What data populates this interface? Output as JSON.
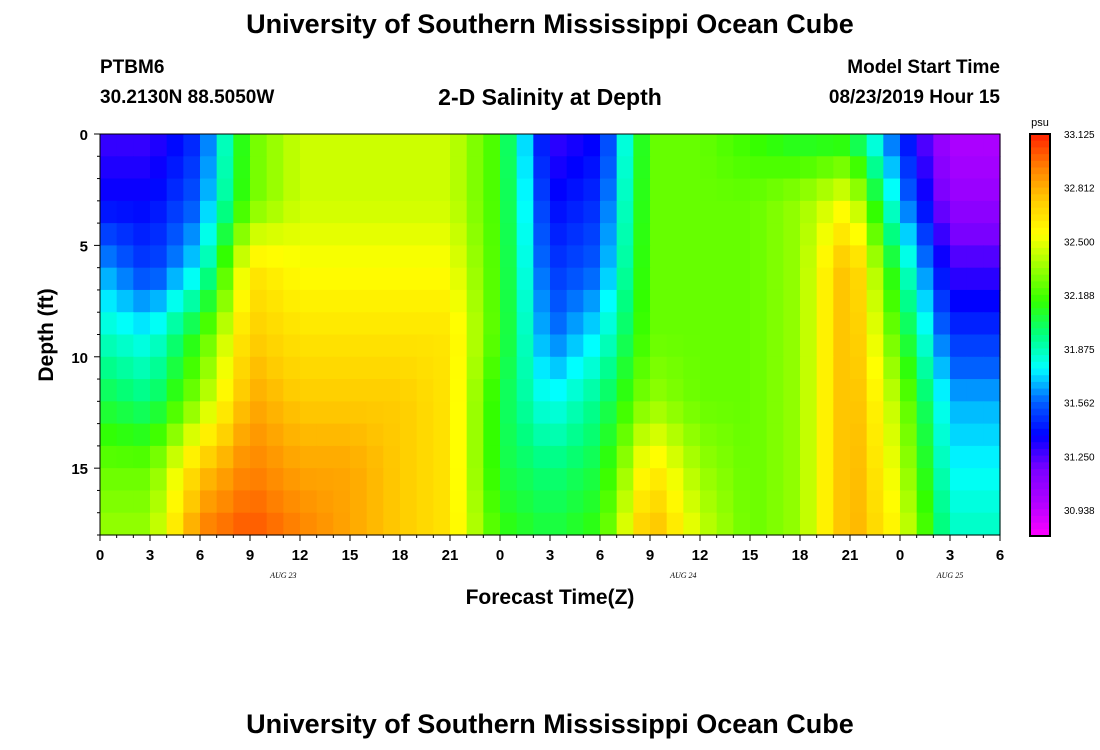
{
  "page": {
    "title_top": "University of Southern Mississippi Ocean Cube",
    "title_bottom": "University of Southern Mississippi Ocean Cube",
    "station": "PTBM6",
    "location": "30.2130N 88.5050W",
    "subtitle": "2-D Salinity at Depth",
    "model_label": "Model Start Time",
    "model_time": "08/23/2019 Hour 15"
  },
  "chart_data": {
    "type": "heatmap",
    "title": "2-D Salinity at Depth",
    "xlabel": "Forecast Time(Z)",
    "ylabel": "Depth (ft)",
    "x_range_hours": [
      0,
      54
    ],
    "y_range_ft": [
      0,
      18
    ],
    "x_ticks": [
      {
        "hour": 0,
        "label": "0"
      },
      {
        "hour": 3,
        "label": "3"
      },
      {
        "hour": 6,
        "label": "6"
      },
      {
        "hour": 9,
        "label": "9"
      },
      {
        "hour": 12,
        "label": "12"
      },
      {
        "hour": 15,
        "label": "15"
      },
      {
        "hour": 18,
        "label": "18"
      },
      {
        "hour": 21,
        "label": "21"
      },
      {
        "hour": 24,
        "label": "0"
      },
      {
        "hour": 27,
        "label": "3"
      },
      {
        "hour": 30,
        "label": "6"
      },
      {
        "hour": 33,
        "label": "9"
      },
      {
        "hour": 36,
        "label": "12"
      },
      {
        "hour": 39,
        "label": "15"
      },
      {
        "hour": 42,
        "label": "18"
      },
      {
        "hour": 45,
        "label": "21"
      },
      {
        "hour": 48,
        "label": "0"
      },
      {
        "hour": 51,
        "label": "3"
      },
      {
        "hour": 54,
        "label": "6"
      }
    ],
    "date_labels": [
      {
        "hour": 11,
        "label": "AUG 23"
      },
      {
        "hour": 35,
        "label": "AUG 24"
      },
      {
        "hour": 51,
        "label": "AUG 25"
      }
    ],
    "y_ticks": [
      {
        "depth": 0,
        "label": "0"
      },
      {
        "depth": 5,
        "label": "5"
      },
      {
        "depth": 10,
        "label": "10"
      },
      {
        "depth": 15,
        "label": "15"
      }
    ],
    "colorbar": {
      "unit": "psu",
      "labels": [
        "33.125",
        "32.812",
        "32.500",
        "32.188",
        "31.875",
        "31.562",
        "31.250",
        "30.938"
      ],
      "min": 30.8,
      "max": 33.2,
      "colors": [
        "#ff00ff",
        "#b000ff",
        "#7a00ff",
        "#0000ff",
        "#0060ff",
        "#00ffff",
        "#00ff80",
        "#33ff00",
        "#99ff00",
        "#ffff00",
        "#ffcc00",
        "#ff8000",
        "#ff2000"
      ]
    },
    "grid": {
      "x_hours": [
        0,
        3,
        6,
        9,
        12,
        15,
        18,
        21,
        24,
        27,
        30,
        33,
        36,
        39,
        42,
        45,
        48,
        51,
        54
      ],
      "y_depths": [
        0,
        3,
        6,
        9,
        12,
        15,
        18
      ],
      "values": [
        [
          31.3,
          31.3,
          31.5,
          32.3,
          32.5,
          32.5,
          32.5,
          32.5,
          32.2,
          31.3,
          31.4,
          32.3,
          32.3,
          32.2,
          32.1,
          32.1,
          31.5,
          31.0,
          31.0
        ],
        [
          31.4,
          31.4,
          31.6,
          32.3,
          32.5,
          32.5,
          32.5,
          32.5,
          32.2,
          31.4,
          31.5,
          32.3,
          32.3,
          32.3,
          32.4,
          32.6,
          31.7,
          31.1,
          31.1
        ],
        [
          31.7,
          31.5,
          31.8,
          32.7,
          32.6,
          32.6,
          32.6,
          32.6,
          32.2,
          31.5,
          31.6,
          32.3,
          32.3,
          32.3,
          32.4,
          32.9,
          32.0,
          31.3,
          31.3
        ],
        [
          31.9,
          31.8,
          32.2,
          32.8,
          32.7,
          32.7,
          32.7,
          32.7,
          32.2,
          31.6,
          31.8,
          32.3,
          32.3,
          32.3,
          32.4,
          32.9,
          32.2,
          31.5,
          31.5
        ],
        [
          32.1,
          32.0,
          32.4,
          32.9,
          32.8,
          32.8,
          32.8,
          32.7,
          32.1,
          31.8,
          32.0,
          32.4,
          32.3,
          32.3,
          32.4,
          32.9,
          32.4,
          31.7,
          31.7
        ],
        [
          32.3,
          32.3,
          32.8,
          33.0,
          32.9,
          32.9,
          32.8,
          32.7,
          32.1,
          32.0,
          32.1,
          32.7,
          32.4,
          32.3,
          32.4,
          32.9,
          32.5,
          31.8,
          31.8
        ],
        [
          32.4,
          32.4,
          33.0,
          33.1,
          33.0,
          32.9,
          32.8,
          32.7,
          32.2,
          32.1,
          32.2,
          32.9,
          32.5,
          32.3,
          32.4,
          32.9,
          32.6,
          31.9,
          31.9
        ]
      ]
    }
  }
}
